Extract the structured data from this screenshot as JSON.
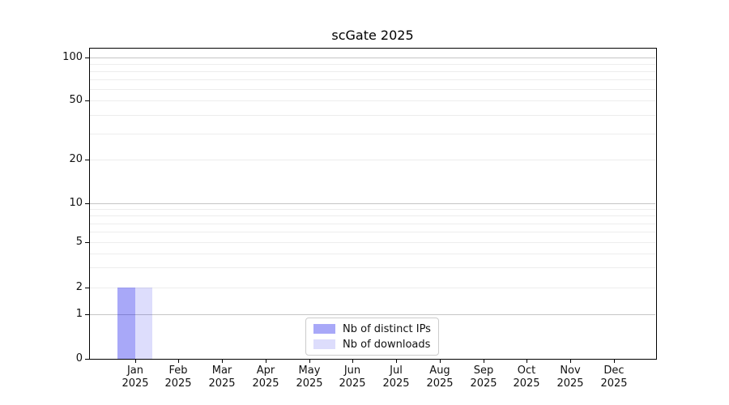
{
  "figure": {
    "background": "#ffffff"
  },
  "chart_data": {
    "type": "bar",
    "title": "scGate 2025",
    "categories": [
      "Jan 2025",
      "Feb 2025",
      "Mar 2025",
      "Apr 2025",
      "May 2025",
      "Jun 2025",
      "Jul 2025",
      "Aug 2025",
      "Sep 2025",
      "Oct 2025",
      "Nov 2025",
      "Dec 2025"
    ],
    "series": [
      {
        "name": "Nb of distinct IPs",
        "color": "rgba(15,15,235,0.36)",
        "values": [
          2,
          0,
          0,
          0,
          0,
          0,
          0,
          0,
          0,
          0,
          0,
          0
        ]
      },
      {
        "name": "Nb of downloads",
        "color": "rgba(15,15,235,0.14)",
        "values": [
          2,
          0,
          0,
          0,
          0,
          0,
          0,
          0,
          0,
          0,
          0,
          0
        ]
      }
    ],
    "xlabel": "",
    "ylabel": "",
    "yscale": "symlog",
    "ylim": [
      0,
      120
    ],
    "ytick_values": [
      0,
      1,
      2,
      5,
      10,
      20,
      50,
      100
    ],
    "major_gridline_values": [
      1,
      10,
      100
    ],
    "minor_gridline_values": [
      2,
      3,
      4,
      5,
      6,
      7,
      8,
      9,
      20,
      30,
      40,
      50,
      60,
      70,
      80,
      90
    ],
    "grid": "horizontal",
    "legend_position": "lower center",
    "colors": {
      "major_grid": "#c6c6c6",
      "minor_grid": "#ededed",
      "axis": "#000000",
      "text": "#111111"
    }
  }
}
